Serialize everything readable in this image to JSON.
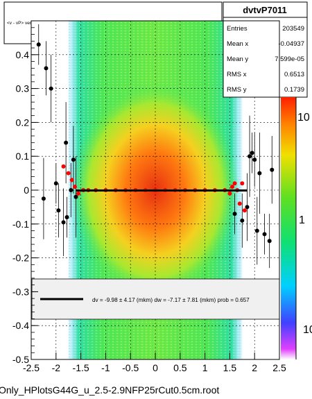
{
  "title": "<v - vP>       versus  tvP =>  dw for barrel 4, layer 7 ladder 11, all wafers",
  "footer": "Only_HPlotsG44G_u_2.5-2.9NFP25rCut0.5cm.root",
  "stats": {
    "name": "dvtvP7011",
    "rows": [
      {
        "label": "Entries",
        "value": "203549"
      },
      {
        "label": "Mean x",
        "value": "-0.04937"
      },
      {
        "label": "Mean y",
        "value": "7.599e-05"
      },
      {
        "label": "RMS x",
        "value": "0.6513"
      },
      {
        "label": "RMS y",
        "value": "0.1739"
      }
    ]
  },
  "fit_legend": "dv =   -9.98 ±   4.17 (mkm) dw =   -7.17 ±   7.81 (mkm) prob = 0.657",
  "colorbar": {
    "labels": [
      "10",
      "1",
      "10"
    ]
  },
  "colors": {
    "fit_line": "#000000",
    "profile_red": "#ff0000",
    "profile_black": "#000000",
    "grid": "#000000"
  },
  "chart_data": {
    "type": "heatmap",
    "xlim": [
      -2.5,
      2.5
    ],
    "ylim": [
      -0.5,
      0.5
    ],
    "xticks": [
      "-2.5",
      "-2",
      "-1.5",
      "-1",
      "-0.5",
      "0",
      "0.5",
      "1",
      "1.5",
      "2",
      "2.5"
    ],
    "yticks": [
      "0.4",
      "0.3",
      "0.2",
      "0.1",
      "0",
      "-0.1",
      "-0.2",
      "-0.3",
      "-0.4",
      "-0.5"
    ],
    "grid": true,
    "density_band_x": [
      -1.75,
      1.75
    ],
    "fit": {
      "dv_mkm": -9.98,
      "dv_err": 4.17,
      "dw_mkm": -7.17,
      "dw_err": 7.81,
      "prob": 0.657,
      "x_range": [
        -1.6,
        1.85
      ]
    },
    "profile_red": [
      {
        "x": -1.85,
        "y": 0.07
      },
      {
        "x": -1.75,
        "y": 0.05
      },
      {
        "x": -1.68,
        "y": 0.03
      },
      {
        "x": -1.62,
        "y": 0.01
      },
      {
        "x": -1.55,
        "y": -0.01
      },
      {
        "x": -1.45,
        "y": 0.0
      },
      {
        "x": -1.35,
        "y": 0.0
      },
      {
        "x": -1.2,
        "y": 0.0
      },
      {
        "x": -1.0,
        "y": 0.0
      },
      {
        "x": -0.8,
        "y": 0.0
      },
      {
        "x": -0.6,
        "y": 0.0
      },
      {
        "x": -0.4,
        "y": 0.0
      },
      {
        "x": -0.2,
        "y": 0.0
      },
      {
        "x": 0.0,
        "y": 0.0
      },
      {
        "x": 0.2,
        "y": 0.0
      },
      {
        "x": 0.4,
        "y": 0.0
      },
      {
        "x": 0.6,
        "y": 0.0
      },
      {
        "x": 0.8,
        "y": 0.0
      },
      {
        "x": 1.0,
        "y": 0.0
      },
      {
        "x": 1.2,
        "y": 0.0
      },
      {
        "x": 1.4,
        "y": 0.0
      },
      {
        "x": 1.5,
        "y": -0.01
      },
      {
        "x": 1.55,
        "y": 0.01
      },
      {
        "x": 1.6,
        "y": 0.02
      },
      {
        "x": 1.65,
        "y": 0.0
      },
      {
        "x": 1.7,
        "y": -0.04
      },
      {
        "x": 1.75,
        "y": 0.02
      },
      {
        "x": 1.8,
        "y": -0.06
      }
    ],
    "profile_black": [
      {
        "x": -2.35,
        "y": 0.43
      },
      {
        "x": -2.2,
        "y": 0.36
      },
      {
        "x": -2.1,
        "y": 0.3
      },
      {
        "x": -2.25,
        "y": -0.025
      },
      {
        "x": -2.0,
        "y": 0.02
      },
      {
        "x": -1.95,
        "y": -0.06
      },
      {
        "x": -1.85,
        "y": -0.095
      },
      {
        "x": -1.8,
        "y": 0.14
      },
      {
        "x": -1.78,
        "y": -0.08
      },
      {
        "x": -1.7,
        "y": 0.0
      },
      {
        "x": -1.65,
        "y": 0.09
      },
      {
        "x": -1.6,
        "y": -0.02
      },
      {
        "x": 1.6,
        "y": -0.07
      },
      {
        "x": 1.75,
        "y": -0.09
      },
      {
        "x": 1.85,
        "y": -0.05
      },
      {
        "x": 1.9,
        "y": 0.1
      },
      {
        "x": 1.95,
        "y": 0.11
      },
      {
        "x": 2.0,
        "y": 0.09
      },
      {
        "x": 2.05,
        "y": -0.12
      },
      {
        "x": 2.1,
        "y": 0.05
      },
      {
        "x": 2.2,
        "y": -0.13
      },
      {
        "x": 2.3,
        "y": -0.15
      },
      {
        "x": 2.35,
        "y": 0.06
      }
    ]
  }
}
